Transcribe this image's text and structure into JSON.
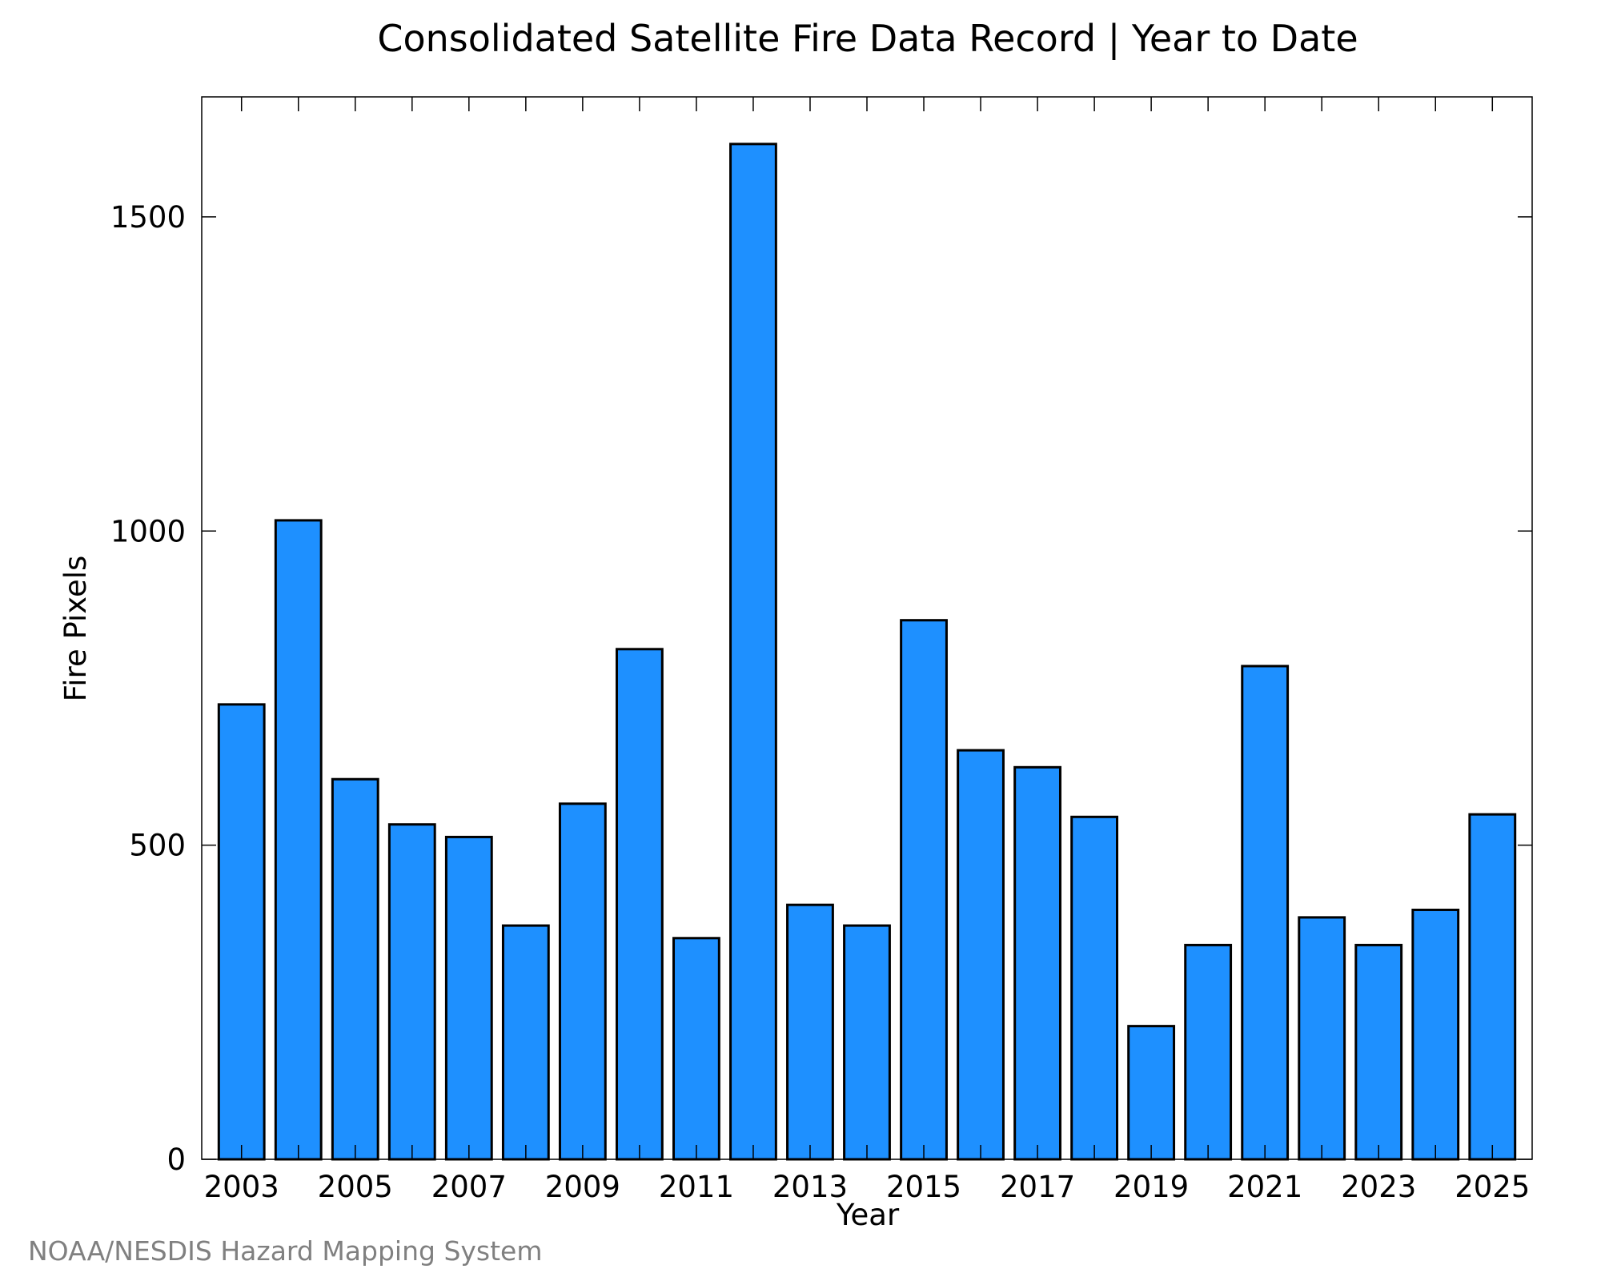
{
  "chart_data": {
    "type": "bar",
    "title": "Consolidated Satellite Fire Data Record | Year to Date",
    "xlabel": "Year",
    "ylabel": "Fire Pixels",
    "categories": [
      "2003",
      "2004",
      "2005",
      "2006",
      "2007",
      "2008",
      "2009",
      "2010",
      "2011",
      "2012",
      "2013",
      "2014",
      "2015",
      "2016",
      "2017",
      "2018",
      "2019",
      "2020",
      "2021",
      "2022",
      "2023",
      "2024",
      "2025"
    ],
    "values": [
      724,
      1017,
      605,
      533,
      513,
      372,
      566,
      812,
      352,
      1616,
      405,
      372,
      858,
      651,
      624,
      545,
      212,
      341,
      785,
      385,
      341,
      397,
      549
    ],
    "x_tick_labels": [
      "2003",
      "2005",
      "2007",
      "2009",
      "2011",
      "2013",
      "2015",
      "2017",
      "2019",
      "2021",
      "2023",
      "2025"
    ],
    "y_ticks": [
      0,
      500,
      1000,
      1500
    ],
    "ylim": [
      0,
      1691
    ],
    "bar_color": "#1e90ff",
    "grid": false,
    "legend": "none"
  },
  "footer": {
    "credit": "NOAA/NESDIS Hazard Mapping System"
  }
}
